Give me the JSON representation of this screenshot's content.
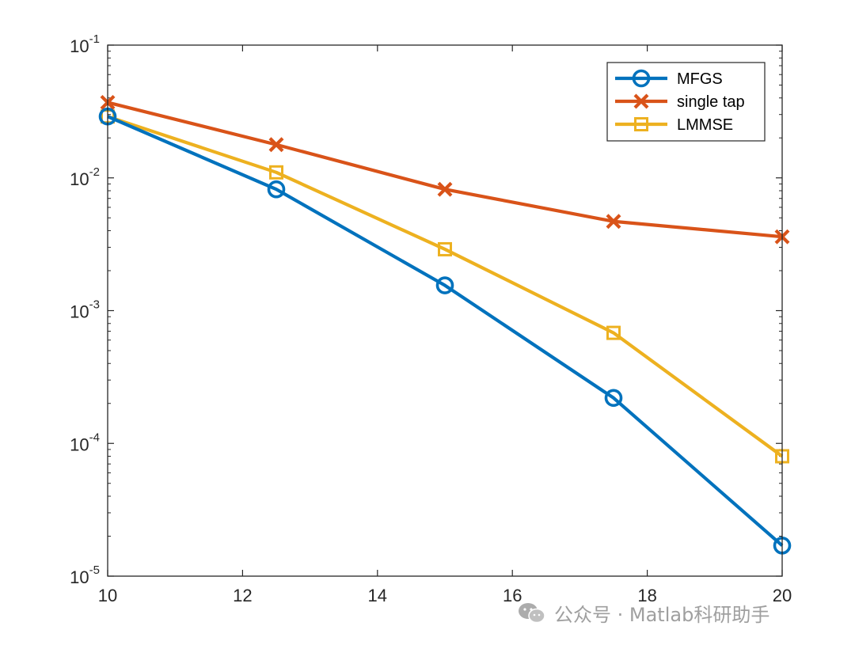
{
  "chart_data": {
    "type": "line",
    "title": "",
    "xlabel": "",
    "ylabel": "",
    "yscale": "log",
    "xlim": [
      10,
      20
    ],
    "ylim": [
      1e-05,
      0.1
    ],
    "x_ticks": [
      10,
      12,
      14,
      16,
      18,
      20
    ],
    "x_tick_labels": [
      "10",
      "12",
      "14",
      "16",
      "18",
      "20"
    ],
    "y_ticks": [
      {
        "value": 1e-05,
        "base": "10",
        "exp": "-5"
      },
      {
        "value": 0.0001,
        "base": "10",
        "exp": "-4"
      },
      {
        "value": 0.001,
        "base": "10",
        "exp": "-3"
      },
      {
        "value": 0.01,
        "base": "10",
        "exp": "-2"
      },
      {
        "value": 0.1,
        "base": "10",
        "exp": "-1"
      }
    ],
    "legend_location": "top-right",
    "x": [
      10,
      12.5,
      15,
      17.5,
      20
    ],
    "series": [
      {
        "name": "MFGS",
        "color": "#0072BD",
        "marker": "circle",
        "values": [
          0.029,
          0.0082,
          0.00155,
          0.00022,
          1.7e-05
        ]
      },
      {
        "name": "single tap",
        "color": "#D95319",
        "marker": "x",
        "values": [
          0.037,
          0.0178,
          0.0082,
          0.0047,
          0.0036
        ]
      },
      {
        "name": "LMMSE",
        "color": "#EDB120",
        "marker": "square",
        "values": [
          0.029,
          0.011,
          0.0029,
          0.00068,
          8e-05
        ]
      }
    ]
  },
  "watermark": {
    "text": "公众号 · Matlab科研助手",
    "icon": "wechat-icon"
  }
}
